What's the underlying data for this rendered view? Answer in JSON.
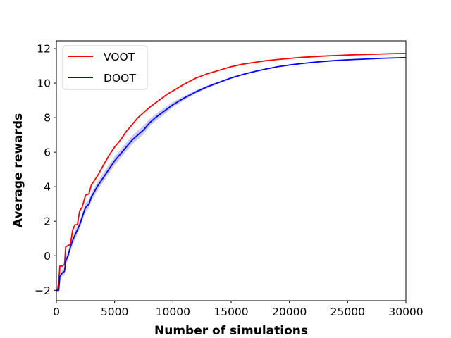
{
  "chart_data": {
    "type": "line",
    "title": "",
    "xlabel": "Number of simulations",
    "ylabel": "Average rewards",
    "xlim": [
      0,
      30000
    ],
    "ylim": [
      -2.6,
      12.45
    ],
    "xticks": [
      0,
      5000,
      10000,
      15000,
      20000,
      25000,
      30000
    ],
    "xtick_labels": [
      "0",
      "5000",
      "10000",
      "15000",
      "20000",
      "25000",
      "30000"
    ],
    "yticks": [
      -2,
      0,
      2,
      4,
      6,
      8,
      10,
      12
    ],
    "ytick_labels": [
      "−2",
      "0",
      "2",
      "4",
      "6",
      "8",
      "10",
      "12"
    ],
    "grid": false,
    "legend_position": "top-left",
    "x": [
      0,
      100,
      200,
      300,
      500,
      700,
      800,
      1000,
      1200,
      1400,
      1600,
      1800,
      2000,
      2200,
      2500,
      2800,
      3000,
      3500,
      4000,
      4500,
      5000,
      5500,
      6000,
      6500,
      7000,
      7500,
      8000,
      8500,
      9000,
      9500,
      10000,
      11000,
      12000,
      13000,
      14000,
      15000,
      16000,
      17000,
      18000,
      19000,
      20000,
      21000,
      22000,
      23000,
      24000,
      25000,
      26000,
      27000,
      28000,
      29000,
      30000
    ],
    "series": [
      {
        "name": "VOOT",
        "color": "#ff0000",
        "values": [
          -2.0,
          -2.0,
          -1.5,
          -0.6,
          -0.6,
          -0.5,
          0.5,
          0.6,
          0.65,
          1.5,
          1.8,
          1.8,
          2.6,
          2.8,
          3.5,
          3.6,
          4.1,
          4.6,
          5.2,
          5.8,
          6.3,
          6.7,
          7.2,
          7.6,
          8.0,
          8.3,
          8.6,
          8.85,
          9.1,
          9.35,
          9.55,
          9.95,
          10.3,
          10.55,
          10.75,
          10.95,
          11.1,
          11.2,
          11.3,
          11.37,
          11.43,
          11.49,
          11.53,
          11.57,
          11.6,
          11.63,
          11.65,
          11.67,
          11.69,
          11.71,
          11.72
        ]
      },
      {
        "name": "DOOT",
        "color": "#0000ff",
        "band_color": "#b3b3f0",
        "values": [
          -2.0,
          -2.0,
          -2.0,
          -1.2,
          -1.0,
          -0.9,
          -0.3,
          0.0,
          0.5,
          0.9,
          1.2,
          1.5,
          1.8,
          2.2,
          2.8,
          3.0,
          3.4,
          4.0,
          4.5,
          5.0,
          5.5,
          5.9,
          6.3,
          6.7,
          7.0,
          7.3,
          7.7,
          8.0,
          8.25,
          8.5,
          8.75,
          9.15,
          9.5,
          9.8,
          10.05,
          10.3,
          10.5,
          10.67,
          10.82,
          10.95,
          11.05,
          11.13,
          11.2,
          11.26,
          11.31,
          11.35,
          11.38,
          11.41,
          11.44,
          11.46,
          11.48
        ],
        "band_halfwidth": [
          0.0,
          0.0,
          0.05,
          0.15,
          0.2,
          0.2,
          0.25,
          0.25,
          0.25,
          0.25,
          0.25,
          0.25,
          0.25,
          0.25,
          0.25,
          0.25,
          0.25,
          0.25,
          0.25,
          0.25,
          0.25,
          0.25,
          0.25,
          0.25,
          0.25,
          0.25,
          0.22,
          0.2,
          0.2,
          0.18,
          0.15,
          0.12,
          0.1,
          0.08,
          0.06,
          0.05,
          0.04,
          0.03,
          0.03,
          0.02,
          0.02,
          0.02,
          0.02,
          0.02,
          0.02,
          0.02,
          0.02,
          0.02,
          0.02,
          0.02,
          0.02
        ]
      }
    ]
  }
}
